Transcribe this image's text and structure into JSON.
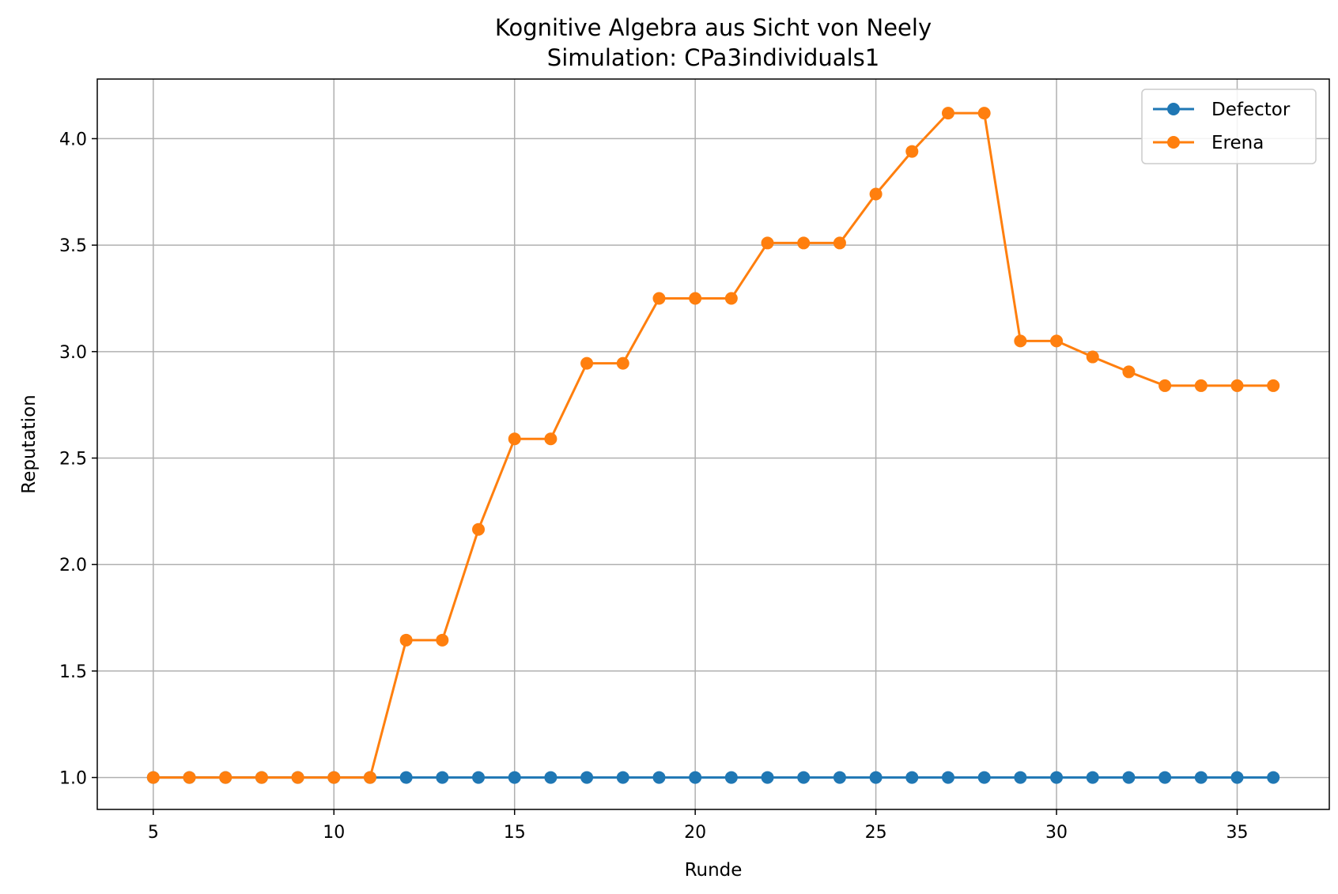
{
  "chart_data": {
    "type": "line",
    "title": "Kognitive Algebra aus Sicht von Neely",
    "subtitle": "Simulation: CPa3individuals1",
    "xlabel": "Runde",
    "ylabel": "Reputation",
    "xlim": [
      3.45,
      37.55
    ],
    "ylim": [
      0.85,
      4.28
    ],
    "xticks": [
      5,
      10,
      15,
      20,
      25,
      30,
      35
    ],
    "yticks": [
      1.0,
      1.5,
      2.0,
      2.5,
      3.0,
      3.5,
      4.0
    ],
    "xtick_labels": [
      "5",
      "10",
      "15",
      "20",
      "25",
      "30",
      "35"
    ],
    "ytick_labels": [
      "1.0",
      "1.5",
      "2.0",
      "2.5",
      "3.0",
      "3.5",
      "4.0"
    ],
    "grid": true,
    "legend_position": "top-right",
    "x": [
      5,
      6,
      7,
      8,
      9,
      10,
      11,
      12,
      13,
      14,
      15,
      16,
      17,
      18,
      19,
      20,
      21,
      22,
      23,
      24,
      25,
      26,
      27,
      28,
      29,
      30,
      31,
      32,
      33,
      34,
      35,
      36
    ],
    "series": [
      {
        "name": "Defector",
        "color": "#1f77b4",
        "values": [
          1.0,
          1.0,
          1.0,
          1.0,
          1.0,
          1.0,
          1.0,
          1.0,
          1.0,
          1.0,
          1.0,
          1.0,
          1.0,
          1.0,
          1.0,
          1.0,
          1.0,
          1.0,
          1.0,
          1.0,
          1.0,
          1.0,
          1.0,
          1.0,
          1.0,
          1.0,
          1.0,
          1.0,
          1.0,
          1.0,
          1.0,
          1.0
        ]
      },
      {
        "name": "Erena",
        "color": "#ff7f0e",
        "values": [
          1.0,
          1.0,
          1.0,
          1.0,
          1.0,
          1.0,
          1.0,
          1.645,
          1.645,
          2.165,
          2.59,
          2.59,
          2.945,
          2.945,
          3.25,
          3.25,
          3.25,
          3.51,
          3.51,
          3.51,
          3.74,
          3.94,
          4.12,
          4.12,
          3.05,
          3.05,
          2.975,
          2.905,
          2.84,
          2.84,
          2.84,
          2.84
        ]
      }
    ]
  }
}
